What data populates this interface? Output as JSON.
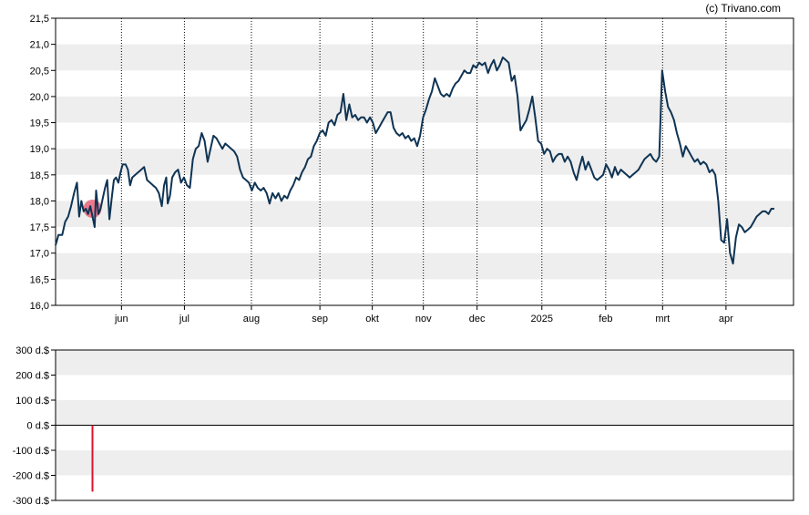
{
  "credit": "(c) Trivano.com",
  "colors": {
    "line": "#0f3454",
    "band": "#eeeeee",
    "marker": "#e8516a",
    "bar": "#e0112b"
  },
  "chart_data": [
    {
      "type": "line",
      "title": "",
      "xlabel": "",
      "ylabel": "",
      "ylim": [
        16.0,
        21.5
      ],
      "y_ticks": [
        "21,5",
        "21,0",
        "20,5",
        "20,0",
        "19,5",
        "19,0",
        "18,5",
        "18,0",
        "17,5",
        "17,0",
        "16,5",
        "16,0"
      ],
      "x_ticks": [
        {
          "label": "jun",
          "x": 0.0893
        },
        {
          "label": "jul",
          "x": 0.1746
        },
        {
          "label": "aug",
          "x": 0.2654
        },
        {
          "label": "sep",
          "x": 0.3582
        },
        {
          "label": "okt",
          "x": 0.4292
        },
        {
          "label": "nov",
          "x": 0.4984
        },
        {
          "label": "dec",
          "x": 0.5712
        },
        {
          "label": "2025",
          "x": 0.659
        },
        {
          "label": "feb",
          "x": 0.7455
        },
        {
          "label": "mrt",
          "x": 0.8226
        },
        {
          "label": "apr",
          "x": 0.9085
        }
      ],
      "grid": "horizontal bands + dotted vertical month lines",
      "marker": {
        "x": 0.05,
        "y": 17.85
      },
      "series": [
        {
          "points": [
            [
              0.0,
              17.15
            ],
            [
              0.004,
              17.35
            ],
            [
              0.009,
              17.35
            ],
            [
              0.013,
              17.6
            ],
            [
              0.017,
              17.7
            ],
            [
              0.021,
              17.9
            ],
            [
              0.025,
              18.15
            ],
            [
              0.029,
              18.35
            ],
            [
              0.032,
              17.7
            ],
            [
              0.035,
              18.0
            ],
            [
              0.038,
              17.8
            ],
            [
              0.041,
              17.85
            ],
            [
              0.044,
              17.75
            ],
            [
              0.047,
              17.9
            ],
            [
              0.05,
              17.7
            ],
            [
              0.053,
              17.5
            ],
            [
              0.055,
              18.2
            ],
            [
              0.058,
              17.75
            ],
            [
              0.061,
              17.85
            ],
            [
              0.064,
              18.05
            ],
            [
              0.067,
              18.25
            ],
            [
              0.07,
              18.4
            ],
            [
              0.073,
              17.65
            ],
            [
              0.076,
              18.05
            ],
            [
              0.079,
              18.4
            ],
            [
              0.082,
              18.45
            ],
            [
              0.085,
              18.35
            ],
            [
              0.088,
              18.55
            ],
            [
              0.091,
              18.7
            ],
            [
              0.095,
              18.7
            ],
            [
              0.098,
              18.6
            ],
            [
              0.101,
              18.3
            ],
            [
              0.104,
              18.45
            ],
            [
              0.108,
              18.5
            ],
            [
              0.112,
              18.55
            ],
            [
              0.116,
              18.6
            ],
            [
              0.12,
              18.65
            ],
            [
              0.124,
              18.4
            ],
            [
              0.128,
              18.35
            ],
            [
              0.132,
              18.3
            ],
            [
              0.136,
              18.25
            ],
            [
              0.14,
              18.15
            ],
            [
              0.144,
              17.9
            ],
            [
              0.147,
              18.3
            ],
            [
              0.15,
              18.45
            ],
            [
              0.152,
              17.95
            ],
            [
              0.155,
              18.1
            ],
            [
              0.158,
              18.45
            ],
            [
              0.162,
              18.55
            ],
            [
              0.166,
              18.6
            ],
            [
              0.17,
              18.35
            ],
            [
              0.174,
              18.45
            ],
            [
              0.178,
              18.3
            ],
            [
              0.182,
              18.25
            ],
            [
              0.186,
              18.8
            ],
            [
              0.19,
              19.0
            ],
            [
              0.194,
              19.05
            ],
            [
              0.198,
              19.3
            ],
            [
              0.202,
              19.15
            ],
            [
              0.206,
              18.75
            ],
            [
              0.21,
              19.0
            ],
            [
              0.214,
              19.25
            ],
            [
              0.218,
              19.2
            ],
            [
              0.222,
              19.1
            ],
            [
              0.226,
              19.0
            ],
            [
              0.23,
              19.1
            ],
            [
              0.234,
              19.05
            ],
            [
              0.238,
              19.0
            ],
            [
              0.242,
              18.95
            ],
            [
              0.246,
              18.85
            ],
            [
              0.25,
              18.6
            ],
            [
              0.254,
              18.45
            ],
            [
              0.258,
              18.4
            ],
            [
              0.262,
              18.35
            ],
            [
              0.266,
              18.2
            ],
            [
              0.27,
              18.35
            ],
            [
              0.274,
              18.25
            ],
            [
              0.278,
              18.2
            ],
            [
              0.282,
              18.25
            ],
            [
              0.286,
              18.15
            ],
            [
              0.29,
              17.95
            ],
            [
              0.294,
              18.15
            ],
            [
              0.298,
              18.05
            ],
            [
              0.302,
              18.15
            ],
            [
              0.306,
              18.0
            ],
            [
              0.31,
              18.1
            ],
            [
              0.314,
              18.05
            ],
            [
              0.318,
              18.2
            ],
            [
              0.322,
              18.3
            ],
            [
              0.326,
              18.45
            ],
            [
              0.33,
              18.4
            ],
            [
              0.334,
              18.55
            ],
            [
              0.338,
              18.65
            ],
            [
              0.342,
              18.8
            ],
            [
              0.346,
              18.85
            ],
            [
              0.35,
              19.05
            ],
            [
              0.354,
              19.15
            ],
            [
              0.358,
              19.3
            ],
            [
              0.362,
              19.35
            ],
            [
              0.366,
              19.25
            ],
            [
              0.37,
              19.5
            ],
            [
              0.374,
              19.55
            ],
            [
              0.378,
              19.45
            ],
            [
              0.382,
              19.65
            ],
            [
              0.386,
              19.7
            ],
            [
              0.39,
              20.05
            ],
            [
              0.394,
              19.55
            ],
            [
              0.398,
              19.85
            ],
            [
              0.402,
              19.6
            ],
            [
              0.406,
              19.65
            ],
            [
              0.41,
              19.55
            ],
            [
              0.414,
              19.6
            ],
            [
              0.418,
              19.6
            ],
            [
              0.422,
              19.5
            ],
            [
              0.426,
              19.6
            ],
            [
              0.43,
              19.5
            ],
            [
              0.434,
              19.3
            ],
            [
              0.438,
              19.4
            ],
            [
              0.442,
              19.5
            ],
            [
              0.446,
              19.6
            ],
            [
              0.45,
              19.7
            ],
            [
              0.454,
              19.7
            ],
            [
              0.458,
              19.4
            ],
            [
              0.462,
              19.3
            ],
            [
              0.466,
              19.25
            ],
            [
              0.47,
              19.3
            ],
            [
              0.474,
              19.2
            ],
            [
              0.478,
              19.25
            ],
            [
              0.482,
              19.15
            ],
            [
              0.486,
              19.2
            ],
            [
              0.49,
              19.05
            ],
            [
              0.494,
              19.25
            ],
            [
              0.498,
              19.6
            ],
            [
              0.502,
              19.75
            ],
            [
              0.506,
              19.95
            ],
            [
              0.51,
              20.1
            ],
            [
              0.514,
              20.35
            ],
            [
              0.518,
              20.2
            ],
            [
              0.522,
              20.05
            ],
            [
              0.526,
              20.0
            ],
            [
              0.53,
              20.05
            ],
            [
              0.534,
              20.0
            ],
            [
              0.538,
              20.15
            ],
            [
              0.542,
              20.25
            ],
            [
              0.546,
              20.3
            ],
            [
              0.55,
              20.4
            ],
            [
              0.554,
              20.5
            ],
            [
              0.558,
              20.45
            ],
            [
              0.562,
              20.45
            ],
            [
              0.566,
              20.6
            ],
            [
              0.57,
              20.55
            ],
            [
              0.574,
              20.65
            ],
            [
              0.578,
              20.6
            ],
            [
              0.582,
              20.65
            ],
            [
              0.586,
              20.45
            ],
            [
              0.59,
              20.6
            ],
            [
              0.594,
              20.7
            ],
            [
              0.598,
              20.5
            ],
            [
              0.602,
              20.6
            ],
            [
              0.606,
              20.75
            ],
            [
              0.61,
              20.7
            ],
            [
              0.614,
              20.65
            ],
            [
              0.618,
              20.3
            ],
            [
              0.622,
              20.4
            ],
            [
              0.626,
              20.0
            ],
            [
              0.63,
              19.35
            ],
            [
              0.634,
              19.45
            ],
            [
              0.638,
              19.55
            ],
            [
              0.642,
              19.75
            ],
            [
              0.646,
              20.0
            ],
            [
              0.65,
              19.6
            ],
            [
              0.654,
              19.15
            ],
            [
              0.658,
              19.1
            ],
            [
              0.662,
              18.9
            ],
            [
              0.666,
              19.0
            ],
            [
              0.67,
              18.95
            ],
            [
              0.674,
              18.75
            ],
            [
              0.678,
              18.85
            ],
            [
              0.682,
              18.9
            ],
            [
              0.686,
              18.9
            ],
            [
              0.69,
              18.75
            ],
            [
              0.694,
              18.85
            ],
            [
              0.698,
              18.75
            ],
            [
              0.702,
              18.55
            ],
            [
              0.706,
              18.4
            ],
            [
              0.71,
              18.65
            ],
            [
              0.714,
              18.85
            ],
            [
              0.718,
              18.6
            ],
            [
              0.722,
              18.75
            ],
            [
              0.726,
              18.6
            ],
            [
              0.73,
              18.45
            ],
            [
              0.734,
              18.4
            ],
            [
              0.738,
              18.45
            ],
            [
              0.742,
              18.5
            ],
            [
              0.746,
              18.7
            ],
            [
              0.75,
              18.6
            ],
            [
              0.754,
              18.45
            ],
            [
              0.758,
              18.65
            ],
            [
              0.762,
              18.5
            ],
            [
              0.766,
              18.6
            ],
            [
              0.77,
              18.55
            ],
            [
              0.774,
              18.5
            ],
            [
              0.778,
              18.45
            ],
            [
              0.782,
              18.5
            ],
            [
              0.786,
              18.55
            ],
            [
              0.79,
              18.6
            ],
            [
              0.794,
              18.7
            ],
            [
              0.798,
              18.8
            ],
            [
              0.802,
              18.85
            ],
            [
              0.806,
              18.9
            ],
            [
              0.81,
              18.8
            ],
            [
              0.814,
              18.75
            ],
            [
              0.818,
              18.85
            ],
            [
              0.822,
              20.5
            ],
            [
              0.826,
              20.1
            ],
            [
              0.83,
              19.8
            ],
            [
              0.834,
              19.7
            ],
            [
              0.838,
              19.55
            ],
            [
              0.842,
              19.3
            ],
            [
              0.846,
              19.1
            ],
            [
              0.85,
              18.85
            ],
            [
              0.854,
              19.05
            ],
            [
              0.858,
              18.95
            ],
            [
              0.862,
              18.85
            ],
            [
              0.866,
              18.75
            ],
            [
              0.87,
              18.8
            ],
            [
              0.874,
              18.7
            ],
            [
              0.878,
              18.75
            ],
            [
              0.882,
              18.7
            ],
            [
              0.886,
              18.55
            ],
            [
              0.89,
              18.6
            ],
            [
              0.894,
              18.5
            ],
            [
              0.898,
              18.0
            ],
            [
              0.902,
              17.25
            ],
            [
              0.906,
              17.2
            ],
            [
              0.91,
              17.65
            ],
            [
              0.914,
              17.0
            ],
            [
              0.918,
              16.8
            ],
            [
              0.922,
              17.3
            ],
            [
              0.926,
              17.55
            ],
            [
              0.93,
              17.5
            ],
            [
              0.934,
              17.4
            ],
            [
              0.938,
              17.45
            ],
            [
              0.942,
              17.5
            ],
            [
              0.946,
              17.6
            ],
            [
              0.95,
              17.7
            ],
            [
              0.954,
              17.75
            ],
            [
              0.958,
              17.8
            ],
            [
              0.962,
              17.8
            ],
            [
              0.966,
              17.75
            ],
            [
              0.97,
              17.85
            ],
            [
              0.974,
              17.85
            ]
          ]
        }
      ]
    },
    {
      "type": "bar",
      "title": "",
      "ylim": [
        -300,
        300
      ],
      "y_ticks": [
        "300 d.$",
        "200 d.$",
        "100 d.$",
        "0 d.$",
        "-100 d.$",
        "-200 d.$",
        "-300 d.$"
      ],
      "bars": [
        {
          "x": 0.05,
          "value": -265
        }
      ]
    }
  ]
}
